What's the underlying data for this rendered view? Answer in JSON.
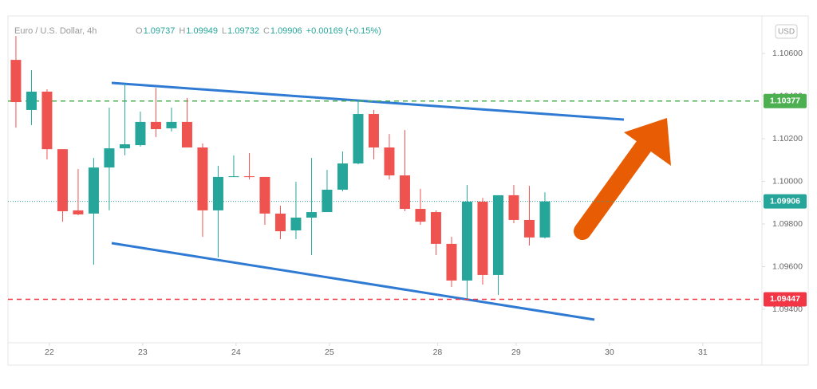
{
  "chart_data": {
    "type": "candlestick",
    "title": "Euro / U.S. Dollar, 4h",
    "header": [
      {
        "key": "O",
        "value": 1.09737
      },
      {
        "key": "H",
        "value": 1.09949
      },
      {
        "key": "L",
        "value": 1.09732
      },
      {
        "key": "C",
        "value": 1.09906
      }
    ],
    "change": "+0.00169 (+0.15%)",
    "currency": "USD",
    "up_color": "#26a69a",
    "down_color": "#ef5350",
    "x": [
      0,
      1,
      2,
      3,
      4,
      5,
      6,
      7,
      8,
      9,
      10,
      11,
      12,
      13,
      14,
      15,
      16,
      17,
      18,
      19,
      20,
      21,
      22,
      23,
      24,
      25,
      26,
      27,
      28,
      29,
      30,
      31,
      32,
      33,
      34
    ],
    "candles": [
      [
        1.1057,
        1.10682,
        1.10252,
        1.10372
      ],
      [
        1.10335,
        1.10522,
        1.10264,
        1.10421
      ],
      [
        1.10421,
        1.10432,
        1.10103,
        1.10151
      ],
      [
        1.10151,
        1.10151,
        1.09811,
        1.0986
      ],
      [
        1.09864,
        1.10058,
        1.09841,
        1.09845
      ],
      [
        1.09849,
        1.1011,
        1.09609,
        1.10065
      ],
      [
        1.10065,
        1.10346,
        1.09864,
        1.10155
      ],
      [
        1.10155,
        1.10458,
        1.10122,
        1.10174
      ],
      [
        1.1017,
        1.10327,
        1.10163,
        1.10279
      ],
      [
        1.10279,
        1.10439,
        1.10208,
        1.10245
      ],
      [
        1.10249,
        1.10346,
        1.10234,
        1.10279
      ],
      [
        1.10279,
        1.10391,
        1.10159,
        1.10159
      ],
      [
        1.10159,
        1.10178,
        1.0974,
        1.09864
      ],
      [
        1.09864,
        1.10073,
        1.09643,
        1.10021
      ],
      [
        1.10021,
        1.10122,
        1.10021,
        1.10024
      ],
      [
        1.10024,
        1.10133,
        1.10009,
        1.10021
      ],
      [
        1.10021,
        1.10021,
        1.09796,
        1.09849
      ],
      [
        1.09849,
        1.09886,
        1.09729,
        1.09766
      ],
      [
        1.0977,
        1.09998,
        1.09729,
        1.0983
      ],
      [
        1.0983,
        1.1011,
        1.09654,
        1.09856
      ],
      [
        1.09856,
        1.10054,
        1.09856,
        1.09961
      ],
      [
        1.09961,
        1.1014,
        1.09953,
        1.10084
      ],
      [
        1.10084,
        1.10383,
        1.1008,
        1.10316
      ],
      [
        1.10316,
        1.10335,
        1.10103,
        1.10159
      ],
      [
        1.10159,
        1.10222,
        1.10009,
        1.10028
      ],
      [
        1.10028,
        1.10241,
        1.0986,
        1.09871
      ],
      [
        1.09871,
        1.09965,
        1.09796,
        1.09811
      ],
      [
        1.09856,
        1.09864,
        1.09654,
        1.09707
      ],
      [
        1.09707,
        1.0974,
        1.09505,
        1.09535
      ],
      [
        1.09535,
        1.09983,
        1.09449,
        1.09905
      ],
      [
        1.09905,
        1.09923,
        1.09516,
        1.09561
      ],
      [
        1.09561,
        1.09935,
        1.09467,
        1.09935
      ],
      [
        1.09935,
        1.09983,
        1.09804,
        1.09819
      ],
      [
        1.09819,
        1.09979,
        1.09699,
        1.09737
      ],
      [
        1.09737,
        1.09949,
        1.09732,
        1.09906
      ]
    ],
    "xlim": [
      -0.51,
      47.95
    ],
    "xticks": [
      {
        "value": 2.15,
        "label": "22"
      },
      {
        "value": 8.15,
        "label": "23"
      },
      {
        "value": 14.15,
        "label": "24"
      },
      {
        "value": 20.15,
        "label": "25"
      },
      {
        "value": 27.1,
        "label": "28"
      },
      {
        "value": 32.15,
        "label": "29"
      },
      {
        "value": 38.15,
        "label": "30"
      },
      {
        "value": 44.15,
        "label": "31"
      }
    ],
    "ylim": [
      1.09243,
      1.10776
    ],
    "yticks": [
      {
        "value": 1.106,
        "label": "1.10600"
      },
      {
        "value": 1.104,
        "label": "1.10400"
      },
      {
        "value": 1.102,
        "label": "1.10200"
      },
      {
        "value": 1.1,
        "label": "1.10000"
      },
      {
        "value": 1.098,
        "label": "1.09800"
      },
      {
        "value": 1.096,
        "label": "1.09600"
      },
      {
        "value": 1.094,
        "label": "1.09400"
      }
    ],
    "grid": false,
    "levels": [
      {
        "value": 1.10377,
        "color": "#4caf50",
        "style": "dashed"
      },
      {
        "value": 1.09906,
        "color": "#26a69a",
        "style": "dotted"
      },
      {
        "value": 1.09447,
        "color": "#f23645",
        "style": "dashed"
      }
    ]
  }
}
